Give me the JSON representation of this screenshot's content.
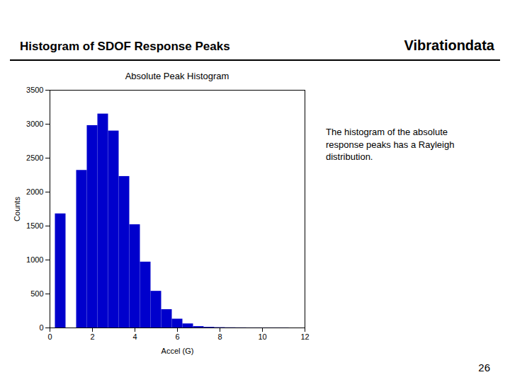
{
  "title": "Histogram of SDOF Response Peaks",
  "annotations": [
    "Vibrationdata",
    "The histogram of the absolute\nresponse peaks has a Rayleigh\ndistribution.",
    "26"
  ],
  "chart_data": {
    "type": "bar",
    "title": "Absolute Peak Histogram",
    "xlabel": "Accel (G)",
    "ylabel": "Counts",
    "x": [
      0.5,
      1.5,
      2.0,
      2.5,
      3.0,
      3.5,
      4.0,
      4.5,
      5.0,
      5.5,
      6.0,
      6.5,
      7.0,
      7.5,
      8.0,
      8.5,
      9.0,
      9.5,
      10.0,
      10.5,
      11.0,
      11.5
    ],
    "values": [
      1680,
      2320,
      2980,
      3150,
      2900,
      2230,
      1520,
      970,
      540,
      270,
      130,
      60,
      20,
      10,
      5,
      3,
      2,
      1,
      1,
      1,
      1,
      0
    ],
    "color": "#0000CC",
    "xlim": [
      0,
      12
    ],
    "ylim": [
      0,
      3500
    ],
    "xticks": [
      0,
      2,
      4,
      6,
      8,
      10,
      12
    ],
    "yticks": [
      0,
      500,
      1000,
      1500,
      2000,
      2500,
      3000,
      3500
    ],
    "grid": false
  }
}
